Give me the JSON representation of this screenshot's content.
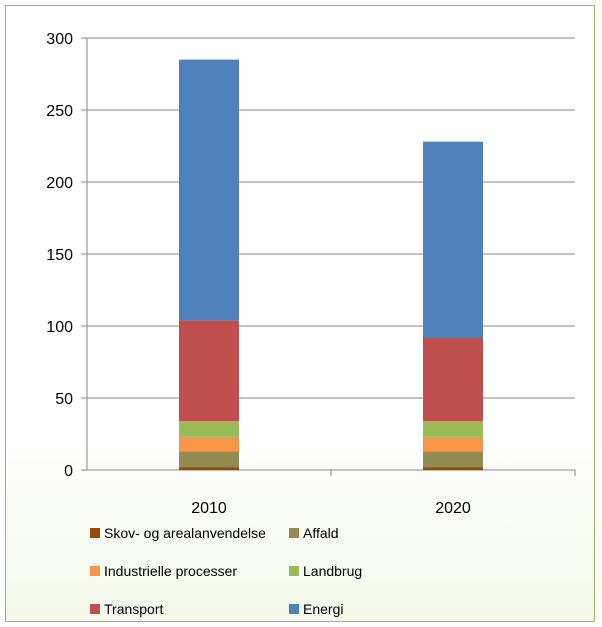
{
  "chart_data": {
    "type": "bar",
    "stacked": true,
    "categories": [
      "2010",
      "2020"
    ],
    "series": [
      {
        "name": "Skov- og arealanvendelse",
        "color": "#984807",
        "values": [
          2,
          2
        ]
      },
      {
        "name": "Affald",
        "color": "#948a54",
        "values": [
          11,
          11
        ]
      },
      {
        "name": "Industrielle processer",
        "color": "#f79646",
        "values": [
          10,
          10
        ]
      },
      {
        "name": "Landbrug",
        "color": "#9bbb59",
        "values": [
          11,
          11
        ]
      },
      {
        "name": "Transport",
        "color": "#c0504d",
        "values": [
          70,
          58
        ]
      },
      {
        "name": "Energi",
        "color": "#4f81bd",
        "values": [
          181,
          136
        ]
      }
    ],
    "ylim": [
      0,
      300
    ],
    "yticks": [
      "0",
      "50",
      "100",
      "150",
      "200",
      "250",
      "300"
    ],
    "grid": true,
    "legend_position": "bottom",
    "title": "",
    "xlabel": "",
    "ylabel": ""
  }
}
